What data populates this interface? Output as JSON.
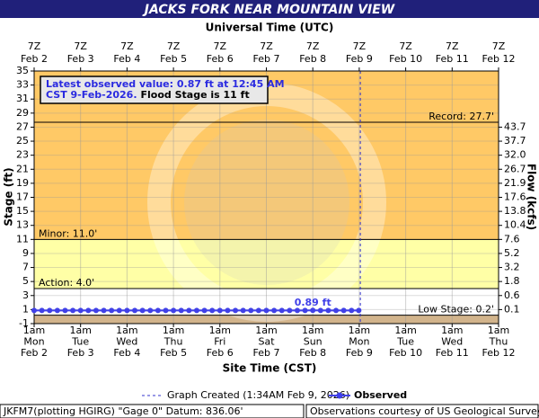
{
  "chart_data": {
    "type": "line",
    "title": "JACKS FORK NEAR MOUNTAIN VIEW",
    "top_axis_label": "Universal Time (UTC)",
    "x_label": "Site Time (CST)",
    "y_label": "Stage (ft)",
    "y2_label": "Flow (kcfs)",
    "info_line1": "Latest observed value: 0.87 ft at 12:45 AM",
    "info_line2": "CST 9-Feb-2026.",
    "info_flood": "Flood Stage is 11 ft",
    "xlim": [
      "2026-02-02T01:00-06:00",
      "2026-02-12T01:00-06:00"
    ],
    "xticks": [
      {
        "value": "2026-02-02T01:00-06:00",
        "label": [
          "1am",
          "Mon",
          "Feb 2"
        ]
      },
      {
        "value": "2026-02-03T01:00-06:00",
        "label": [
          "1am",
          "Tue",
          "Feb 3"
        ]
      },
      {
        "value": "2026-02-04T01:00-06:00",
        "label": [
          "1am",
          "Wed",
          "Feb 4"
        ]
      },
      {
        "value": "2026-02-05T01:00-06:00",
        "label": [
          "1am",
          "Thu",
          "Feb 5"
        ]
      },
      {
        "value": "2026-02-06T01:00-06:00",
        "label": [
          "1am",
          "Fri",
          "Feb 6"
        ]
      },
      {
        "value": "2026-02-07T01:00-06:00",
        "label": [
          "1am",
          "Sat",
          "Feb 7"
        ]
      },
      {
        "value": "2026-02-08T01:00-06:00",
        "label": [
          "1am",
          "Sun",
          "Feb 8"
        ]
      },
      {
        "value": "2026-02-09T01:00-06:00",
        "label": [
          "1am",
          "Mon",
          "Feb 9"
        ]
      },
      {
        "value": "2026-02-10T01:00-06:00",
        "label": [
          "1am",
          "Tue",
          "Feb 10"
        ]
      },
      {
        "value": "2026-02-11T01:00-06:00",
        "label": [
          "1am",
          "Wed",
          "Feb 11"
        ]
      },
      {
        "value": "2026-02-12T01:00-06:00",
        "label": [
          "1am",
          "Thu",
          "Feb 12"
        ]
      }
    ],
    "x2ticks": [
      {
        "value": "2026-02-02T07:00Z",
        "label": [
          "7Z",
          "Feb 2"
        ]
      },
      {
        "value": "2026-02-03T07:00Z",
        "label": [
          "7Z",
          "Feb 3"
        ]
      },
      {
        "value": "2026-02-04T07:00Z",
        "label": [
          "7Z",
          "Feb 4"
        ]
      },
      {
        "value": "2026-02-05T07:00Z",
        "label": [
          "7Z",
          "Feb 5"
        ]
      },
      {
        "value": "2026-02-06T07:00Z",
        "label": [
          "7Z",
          "Feb 6"
        ]
      },
      {
        "value": "2026-02-07T07:00Z",
        "label": [
          "7Z",
          "Feb 7"
        ]
      },
      {
        "value": "2026-02-08T07:00Z",
        "label": [
          "7Z",
          "Feb 8"
        ]
      },
      {
        "value": "2026-02-09T07:00Z",
        "label": [
          "7Z",
          "Feb 9"
        ]
      },
      {
        "value": "2026-02-10T07:00Z",
        "label": [
          "7Z",
          "Feb 10"
        ]
      },
      {
        "value": "2026-02-11T07:00Z",
        "label": [
          "7Z",
          "Feb 11"
        ]
      },
      {
        "value": "2026-02-12T07:00Z",
        "label": [
          "7Z",
          "Feb 12"
        ]
      }
    ],
    "ylim": [
      -1,
      35
    ],
    "yticks": [
      -1,
      1,
      3,
      5,
      7,
      9,
      11,
      13,
      15,
      17,
      19,
      21,
      23,
      25,
      27,
      29,
      31,
      33,
      35
    ],
    "y2ticks": [
      43.7,
      37.7,
      {
        "value": 32.0,
        "label": "32.0"
      },
      26.7,
      21.9,
      17.6,
      13.8,
      10.4,
      7.6,
      5.2,
      3.2,
      1.8,
      0.6,
      0.1
    ],
    "y2tick_stages": [
      27,
      25,
      23,
      21,
      19,
      17,
      15,
      13,
      11,
      9,
      7,
      5,
      3,
      1
    ],
    "bands": [
      {
        "from": -1,
        "to": 0.2,
        "color": "#d2b48c"
      },
      {
        "from": 0.2,
        "to": 4.0,
        "color": "#ffffff"
      },
      {
        "from": 4.0,
        "to": 11.0,
        "color": "#ffffa6"
      },
      {
        "from": 11.0,
        "to": 35,
        "color": "#ffc966"
      }
    ],
    "thresholds": [
      {
        "value": 27.7,
        "label": "Record: 27.7'",
        "side": "right"
      },
      {
        "value": 11.0,
        "label": "Minor: 11.0'",
        "side": "left"
      },
      {
        "value": 4.0,
        "label": "Action: 4.0'",
        "side": "left"
      },
      {
        "value": 0.2,
        "label": "Low Stage: 0.2'",
        "side": "right"
      }
    ],
    "created": "2026-02-09T01:34-06:00",
    "created_label": "Graph Created (1:34AM Feb 9, 2026)",
    "grid": true,
    "series": [
      {
        "name": "Observed",
        "color": "#4040e8",
        "x": [
          "2026-02-02T01:00-06:00",
          "2026-02-02T05:00-06:00",
          "2026-02-02T09:00-06:00",
          "2026-02-02T13:00-06:00",
          "2026-02-02T17:00-06:00",
          "2026-02-02T21:00-06:00",
          "2026-02-03T01:00-06:00",
          "2026-02-03T05:00-06:00",
          "2026-02-03T09:00-06:00",
          "2026-02-03T13:00-06:00",
          "2026-02-03T17:00-06:00",
          "2026-02-03T21:00-06:00",
          "2026-02-04T01:00-06:00",
          "2026-02-04T05:00-06:00",
          "2026-02-04T09:00-06:00",
          "2026-02-04T13:00-06:00",
          "2026-02-04T17:00-06:00",
          "2026-02-04T21:00-06:00",
          "2026-02-05T01:00-06:00",
          "2026-02-05T05:00-06:00",
          "2026-02-05T09:00-06:00",
          "2026-02-05T13:00-06:00",
          "2026-02-05T17:00-06:00",
          "2026-02-05T21:00-06:00",
          "2026-02-06T01:00-06:00",
          "2026-02-06T05:00-06:00",
          "2026-02-06T09:00-06:00",
          "2026-02-06T13:00-06:00",
          "2026-02-06T17:00-06:00",
          "2026-02-06T21:00-06:00",
          "2026-02-07T01:00-06:00",
          "2026-02-07T05:00-06:00",
          "2026-02-07T09:00-06:00",
          "2026-02-07T13:00-06:00",
          "2026-02-07T17:00-06:00",
          "2026-02-07T21:00-06:00",
          "2026-02-08T01:00-06:00",
          "2026-02-08T05:00-06:00",
          "2026-02-08T09:00-06:00",
          "2026-02-08T13:00-06:00",
          "2026-02-08T17:00-06:00",
          "2026-02-08T21:00-06:00",
          "2026-02-09T00:45-06:00"
        ],
        "values": [
          0.88,
          0.88,
          0.87,
          0.88,
          0.87,
          0.88,
          0.88,
          0.88,
          0.88,
          0.88,
          0.88,
          0.88,
          0.88,
          0.88,
          0.88,
          0.88,
          0.88,
          0.88,
          0.88,
          0.88,
          0.88,
          0.88,
          0.88,
          0.88,
          0.88,
          0.88,
          0.88,
          0.88,
          0.88,
          0.88,
          0.88,
          0.88,
          0.88,
          0.88,
          0.88,
          0.88,
          0.89,
          0.88,
          0.88,
          0.88,
          0.88,
          0.88,
          0.87
        ],
        "value_labels": [
          null,
          null,
          null,
          null,
          null,
          null,
          null,
          null,
          null,
          null,
          null,
          null,
          null,
          null,
          null,
          null,
          null,
          null,
          null,
          null,
          null,
          null,
          null,
          null,
          null,
          null,
          null,
          null,
          null,
          null,
          null,
          null,
          null,
          null,
          null,
          null,
          "0.89 ft",
          null,
          null,
          null,
          null,
          null,
          null
        ]
      }
    ],
    "footer_left": "JKFM7(plotting HGIRG) \"Gage 0\" Datum: 836.06'",
    "footer_right": "Observations courtesy of US Geological Survey"
  }
}
